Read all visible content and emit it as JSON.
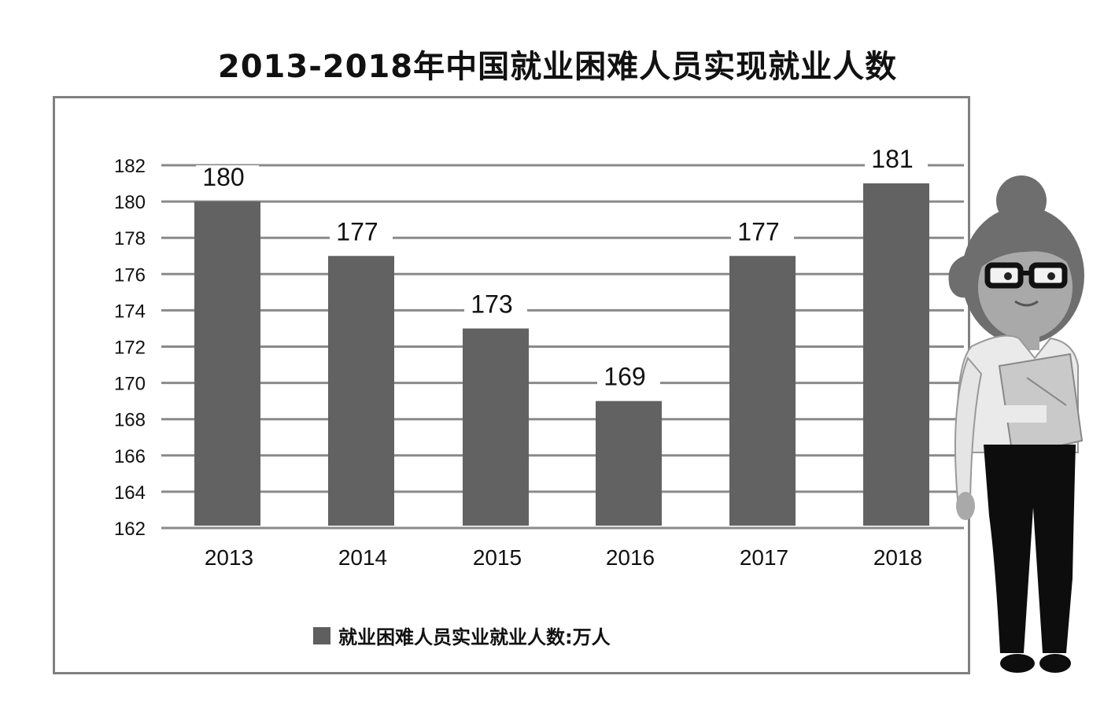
{
  "chart_data": {
    "type": "bar",
    "title": "2013-2018年中国就业困难人员实现就业人数",
    "categories": [
      "2013",
      "2014",
      "2015",
      "2016",
      "2017",
      "2018"
    ],
    "series": [
      {
        "name": "就业困难人员实业就业人数:万人",
        "values": [
          180,
          177,
          173,
          169,
          177,
          181
        ]
      }
    ],
    "data_labels": [
      "180",
      "177",
      "173",
      "169",
      "177",
      "181"
    ],
    "yticks": [
      "162",
      "164",
      "166",
      "168",
      "170",
      "172",
      "174",
      "176",
      "178",
      "180",
      "182"
    ],
    "ylim": [
      162,
      182
    ],
    "xlabel": "",
    "ylabel": "",
    "grid": true,
    "legend_position": "bottom",
    "bar_color": "#626262",
    "grid_color": "#8a8a8a"
  }
}
